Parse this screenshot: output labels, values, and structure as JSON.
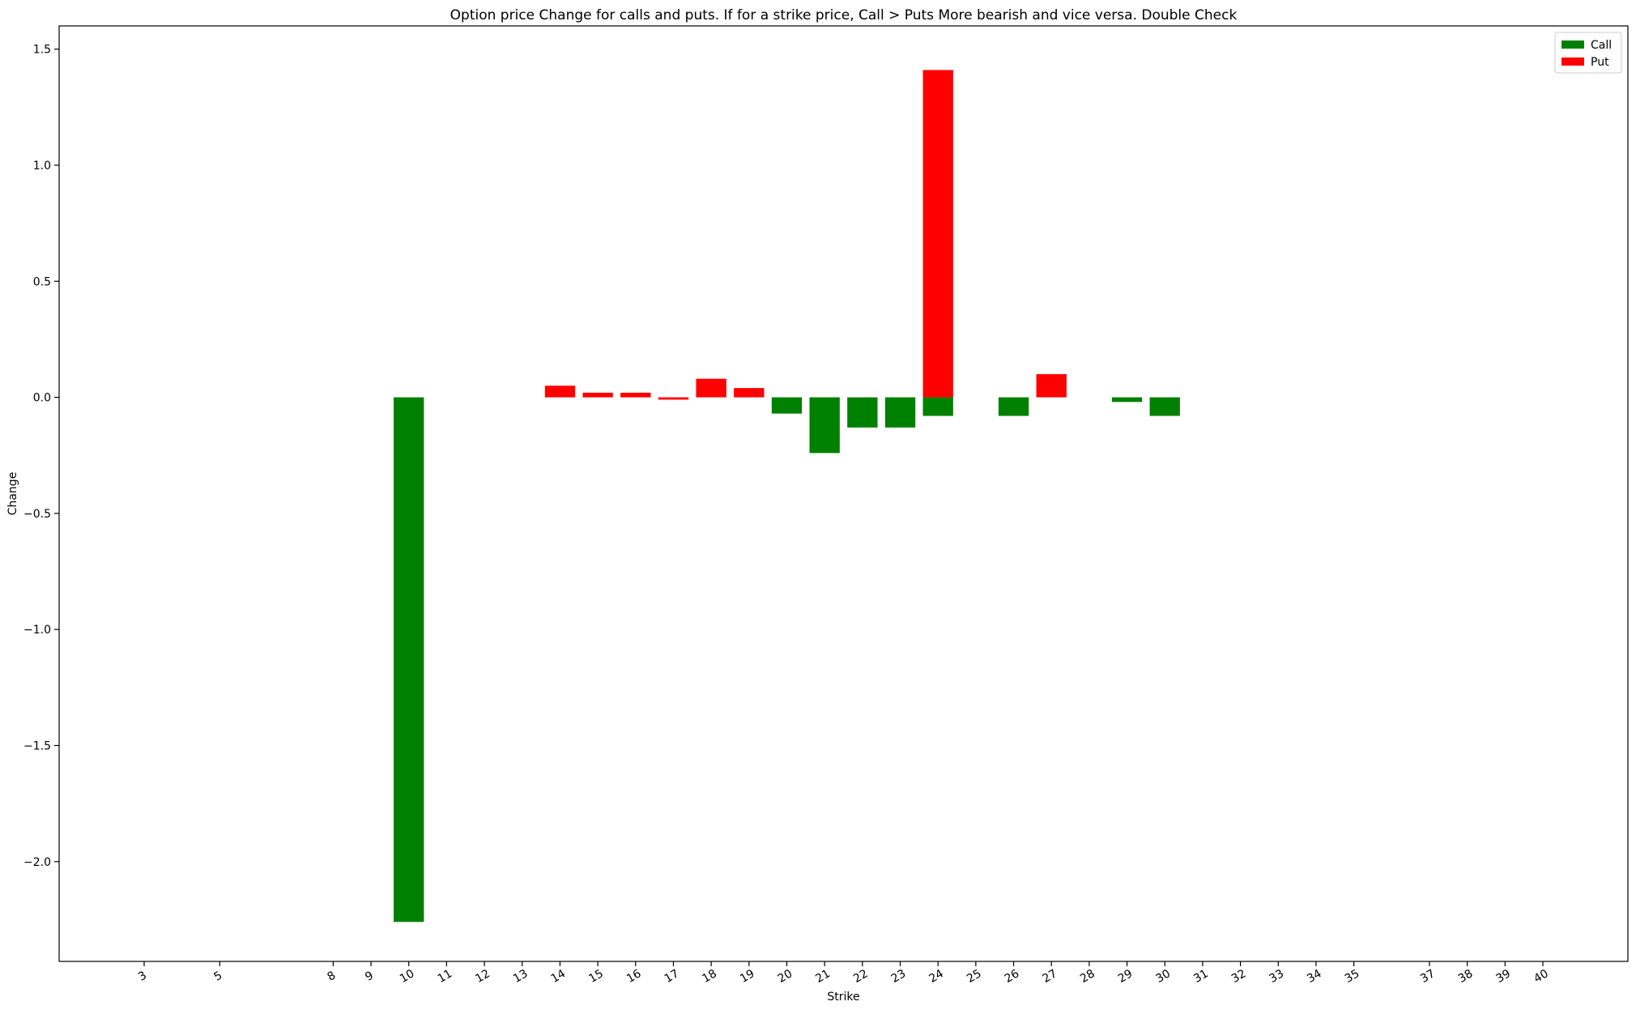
{
  "chart_data": {
    "type": "bar",
    "title": "Option price Change for calls and puts. If for a strike price, Call > Puts More bearish and vice versa. Double Check",
    "xlabel": "Strike",
    "ylabel": "Change",
    "xlim": [
      0.75,
      42.25
    ],
    "ylim": [
      -2.43,
      1.6
    ],
    "yticks": [
      1.5,
      1.0,
      0.5,
      0.0,
      -0.5,
      -1.0,
      -1.5,
      -2.0
    ],
    "ytick_labels": [
      "1.5",
      "1.0",
      "0.5",
      "0.0",
      "−0.5",
      "−1.0",
      "−1.5",
      "−2.0"
    ],
    "xticks": [
      3,
      5,
      8,
      9,
      10,
      11,
      12,
      13,
      14,
      15,
      16,
      17,
      18,
      19,
      20,
      21,
      22,
      23,
      24,
      25,
      26,
      27,
      28,
      29,
      30,
      31,
      32,
      33,
      34,
      35,
      37,
      38,
      39,
      40
    ],
    "xtick_labels": [
      "3",
      "5",
      "8",
      "9",
      "10",
      "11",
      "12",
      "13",
      "14",
      "15",
      "16",
      "17",
      "18",
      "19",
      "20",
      "21",
      "22",
      "23",
      "24",
      "25",
      "26",
      "27",
      "28",
      "29",
      "30",
      "31",
      "32",
      "33",
      "34",
      "35",
      "37",
      "38",
      "39",
      "40"
    ],
    "bar_width": 0.8,
    "legend_position": "top-right",
    "series": [
      {
        "name": "Call",
        "color": "#008000",
        "x": [
          10,
          20,
          21,
          22,
          23,
          24,
          26,
          29,
          30
        ],
        "values": [
          -2.26,
          -0.07,
          -0.24,
          -0.13,
          -0.13,
          -0.08,
          -0.08,
          -0.02,
          -0.08
        ]
      },
      {
        "name": "Put",
        "color": "#ff0000",
        "x": [
          14,
          15,
          16,
          17,
          18,
          19,
          24,
          27
        ],
        "values": [
          0.05,
          0.02,
          0.02,
          -0.01,
          0.08,
          0.04,
          1.41,
          0.1
        ]
      }
    ]
  }
}
